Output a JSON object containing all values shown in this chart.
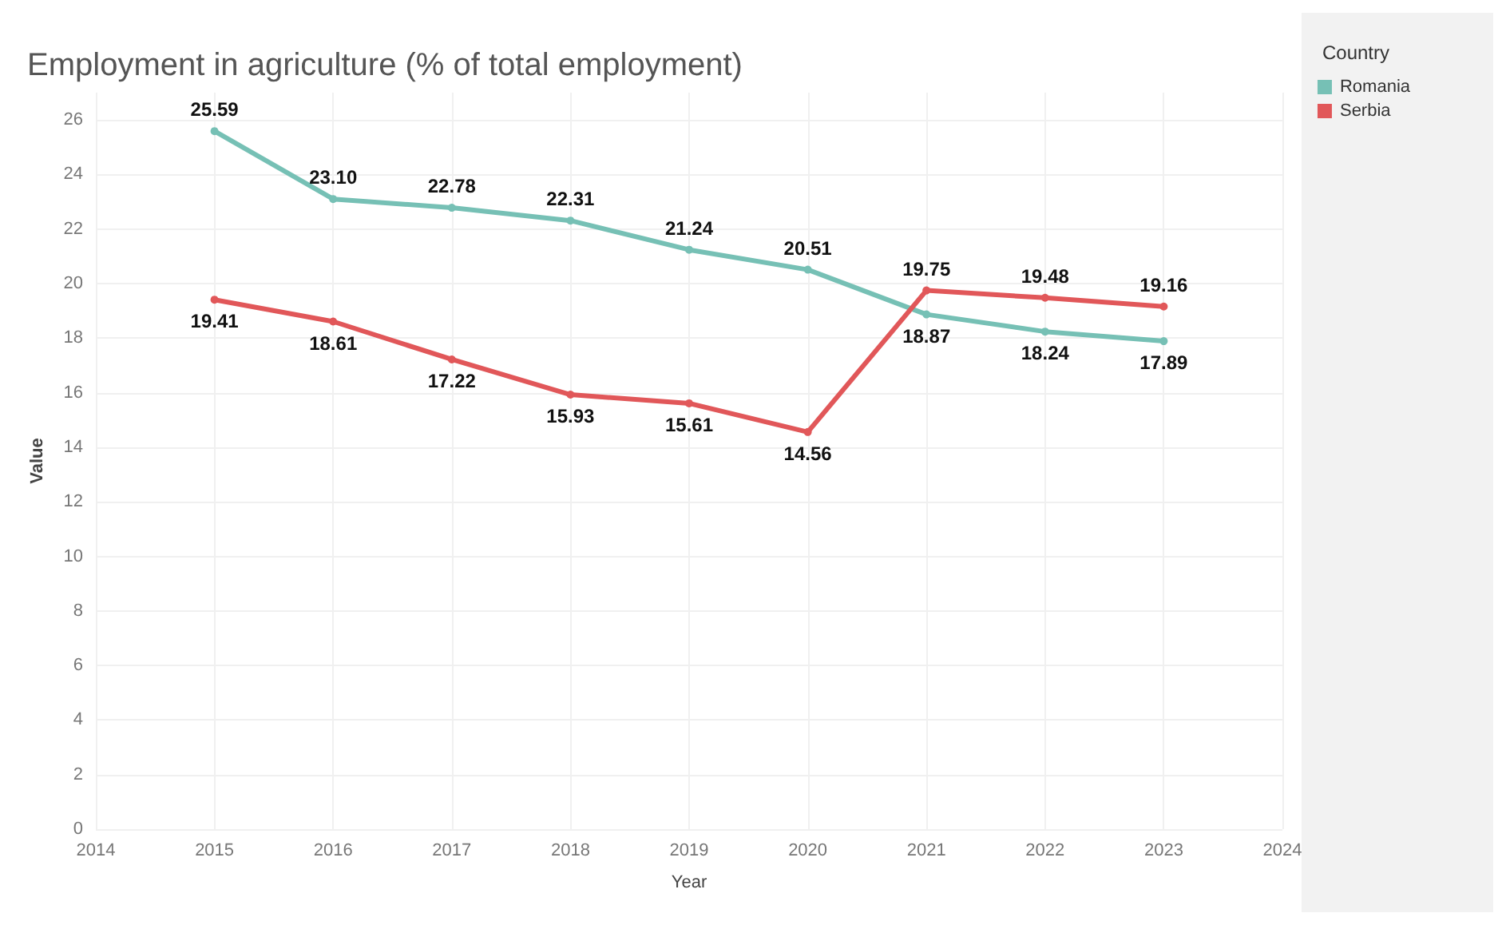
{
  "chart_data": {
    "type": "line",
    "title": "Employment in agriculture (% of total employment)",
    "xlabel": "Year",
    "ylabel": "Value",
    "legend_title": "Country",
    "x": [
      2015,
      2016,
      2017,
      2018,
      2019,
      2020,
      2021,
      2022,
      2023
    ],
    "series": [
      {
        "name": "Romania",
        "color": "#76c0b5",
        "values": [
          25.59,
          23.1,
          22.78,
          22.31,
          21.24,
          20.51,
          18.87,
          18.24,
          17.89
        ],
        "value_labels": [
          "25.59",
          "23.10",
          "22.78",
          "22.31",
          "21.24",
          "20.51",
          "18.87",
          "18.24",
          "17.89"
        ]
      },
      {
        "name": "Serbia",
        "color": "#e15759",
        "values": [
          19.41,
          18.61,
          17.22,
          15.93,
          15.61,
          14.56,
          19.75,
          19.48,
          19.16
        ],
        "value_labels": [
          "19.41",
          "18.61",
          "17.22",
          "15.93",
          "15.61",
          "14.56",
          "19.75",
          "19.48",
          "19.16"
        ]
      }
    ],
    "xlim": [
      2014,
      2024
    ],
    "xticks": [
      2014,
      2015,
      2016,
      2017,
      2018,
      2019,
      2020,
      2021,
      2022,
      2023,
      2024
    ],
    "ylim": [
      0,
      27
    ],
    "yticks": [
      0,
      2,
      4,
      6,
      8,
      10,
      12,
      14,
      16,
      18,
      20,
      22,
      24,
      26
    ],
    "grid": true,
    "legend": "top right",
    "marker": "circle",
    "line_style": "solid"
  }
}
